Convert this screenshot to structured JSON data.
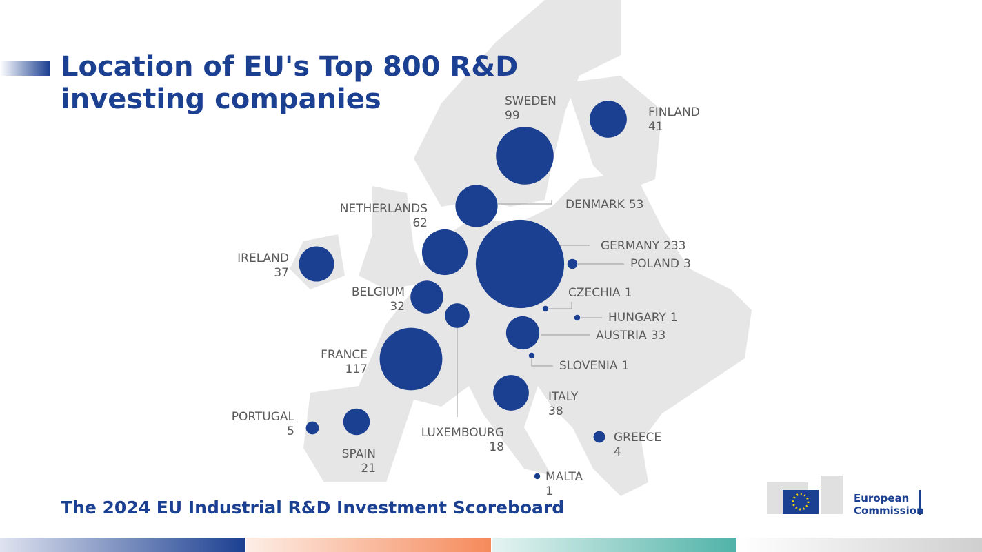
{
  "title_line1": "Location of EU's Top 800 R&D",
  "title_line2": "investing companies",
  "footer": "The 2024 EU Industrial R&D Investment Scoreboard",
  "logo": {
    "line1": "European",
    "line2": "Commission"
  },
  "countries": [
    {
      "name": "SWEDEN",
      "value": 99
    },
    {
      "name": "FINLAND",
      "value": 41
    },
    {
      "name": "DENMARK",
      "value": 53
    },
    {
      "name": "NETHERLANDS",
      "value": 62
    },
    {
      "name": "GERMANY",
      "value": 233
    },
    {
      "name": "POLAND",
      "value": 3
    },
    {
      "name": "IRELAND",
      "value": 37
    },
    {
      "name": "BELGIUM",
      "value": 32
    },
    {
      "name": "LUXEMBOURG",
      "value": 18
    },
    {
      "name": "CZECHIA",
      "value": 1
    },
    {
      "name": "HUNGARY",
      "value": 1
    },
    {
      "name": "AUSTRIA",
      "value": 33
    },
    {
      "name": "SLOVENIA",
      "value": 1
    },
    {
      "name": "FRANCE",
      "value": 117
    },
    {
      "name": "ITALY",
      "value": 38
    },
    {
      "name": "PORTUGAL",
      "value": 5
    },
    {
      "name": "SPAIN",
      "value": 21
    },
    {
      "name": "GREECE",
      "value": 4
    },
    {
      "name": "MALTA",
      "value": 1
    }
  ],
  "bubble_color": "#1b3f91"
}
